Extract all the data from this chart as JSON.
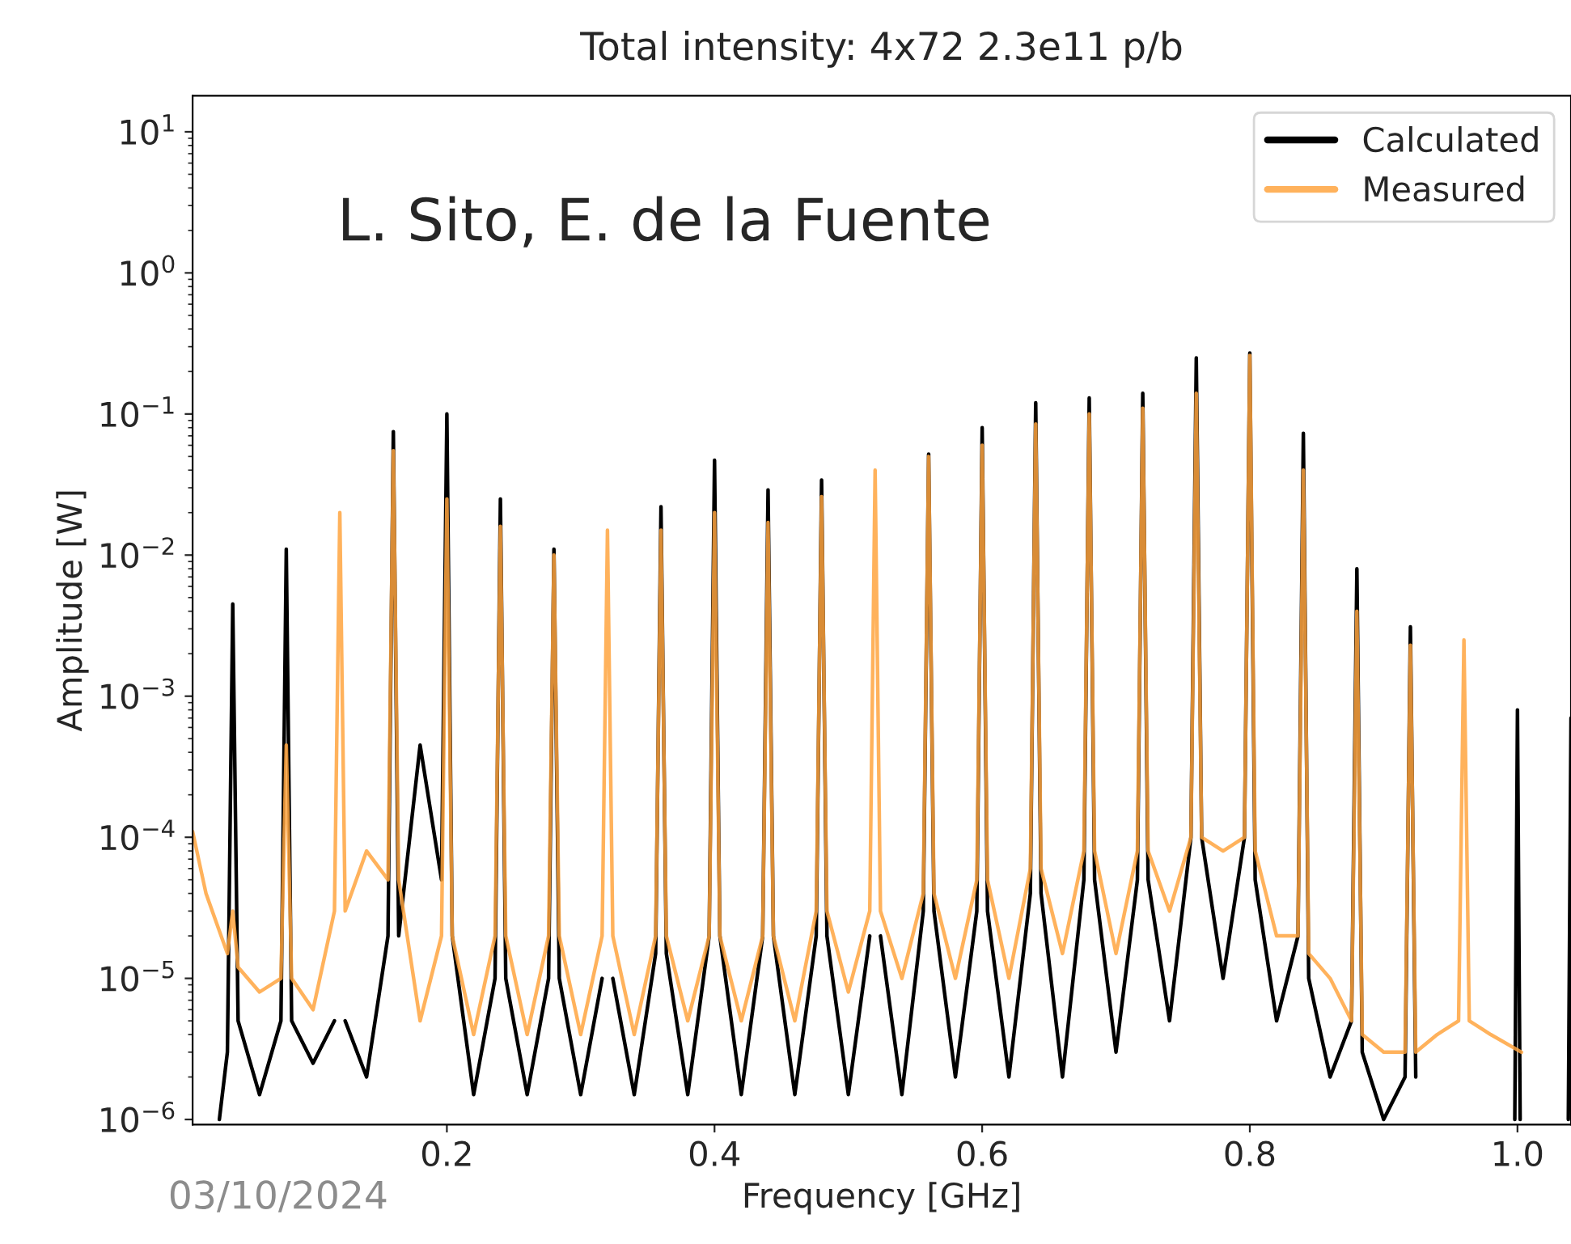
{
  "chart_data": {
    "type": "line",
    "title": "Total intensity: 4x72 2.3e11 p/b",
    "xlabel": "Frequency [GHz]",
    "ylabel": "Amplitude [W]",
    "annotations": [
      "L. Sito, E. de la Fuente",
      "03/10/2024"
    ],
    "log": "y",
    "xlim": [
      0.01,
      1.04
    ],
    "ylim": [
      9.2e-07,
      18
    ],
    "xticks": [
      0.2,
      0.4,
      0.6,
      0.8,
      {
        "value": 1,
        "label": "1.0"
      }
    ],
    "yticks": [
      {
        "value": 1e-06,
        "label": "10$^{−6}$"
      },
      {
        "value": 1e-05,
        "label": "10$^{−5}$"
      },
      {
        "value": 0.0001,
        "label": "10$^{−4}$"
      },
      {
        "value": 0.001,
        "label": "10$^{−3}$"
      },
      {
        "value": 0.01,
        "label": "10$^{−2}$"
      },
      {
        "value": 0.1,
        "label": "10$^{−1}$"
      },
      {
        "value": 1,
        "label": "10$^{0}$"
      },
      {
        "value": 10,
        "label": "10$^{1}$"
      }
    ],
    "legend": "top right",
    "grid": false,
    "series": [
      {
        "name": "Calculated",
        "color": "#000000",
        "x": [
          0.03,
          0.036,
          0.04,
          0.044,
          0.06,
          0.076,
          0.08,
          0.084,
          0.1,
          0.116,
          0.12,
          0.124,
          0.14,
          0.156,
          0.16,
          0.164,
          0.18,
          0.196,
          0.2,
          0.204,
          0.22,
          0.236,
          0.24,
          0.244,
          0.26,
          0.276,
          0.28,
          0.284,
          0.3,
          0.316,
          0.32,
          0.324,
          0.34,
          0.356,
          0.36,
          0.364,
          0.38,
          0.396,
          0.4,
          0.404,
          0.42,
          0.436,
          0.44,
          0.444,
          0.46,
          0.476,
          0.48,
          0.484,
          0.5,
          0.516,
          0.52,
          0.524,
          0.54,
          0.556,
          0.56,
          0.564,
          0.58,
          0.596,
          0.6,
          0.604,
          0.62,
          0.636,
          0.64,
          0.644,
          0.66,
          0.676,
          0.68,
          0.684,
          0.7,
          0.716,
          0.72,
          0.724,
          0.74,
          0.756,
          0.76,
          0.764,
          0.78,
          0.796,
          0.8,
          0.804,
          0.82,
          0.836,
          0.84,
          0.844,
          0.86,
          0.876,
          0.88,
          0.884,
          0.9,
          0.916,
          0.92,
          0.924,
          0.94,
          0.956,
          0.96,
          0.964,
          0.98,
          0.998,
          1.0,
          1.002,
          1.02,
          1.038,
          1.04
        ],
        "values": [
          1e-06,
          3e-06,
          0.0045,
          5e-06,
          1.5e-06,
          5e-06,
          0.011,
          5e-06,
          2.5e-06,
          5e-06,
          null,
          5e-06,
          2e-06,
          2e-05,
          0.075,
          2e-05,
          0.00045,
          5e-05,
          0.1,
          2e-05,
          1.5e-06,
          1e-05,
          0.025,
          1e-05,
          1.5e-06,
          1e-05,
          0.011,
          1e-05,
          1.5e-06,
          1e-05,
          null,
          1e-05,
          1.5e-06,
          1.5e-05,
          0.022,
          1.5e-05,
          1.5e-06,
          2e-05,
          0.047,
          2e-05,
          1.5e-06,
          2e-05,
          0.029,
          2e-05,
          1.5e-06,
          2e-05,
          0.034,
          2e-05,
          1.5e-06,
          2e-05,
          null,
          2e-05,
          1.5e-06,
          3e-05,
          0.052,
          3e-05,
          2e-06,
          3e-05,
          0.08,
          3e-05,
          2e-06,
          4e-05,
          0.12,
          4e-05,
          2e-06,
          5e-05,
          0.13,
          5e-05,
          3e-06,
          5e-05,
          0.14,
          5e-05,
          5e-06,
          0.0001,
          0.25,
          0.0001,
          1e-05,
          0.0001,
          0.27,
          5e-05,
          5e-06,
          2e-05,
          0.073,
          1e-05,
          2e-06,
          5e-06,
          0.008,
          3e-06,
          1e-06,
          2e-06,
          0.0031,
          2e-06,
          null,
          null,
          null,
          null,
          null,
          1e-06,
          0.0008,
          1e-06,
          null,
          1e-06,
          0.0007
        ]
      },
      {
        "name": "Measured",
        "color": "#ffa53f",
        "x": [
          0.01,
          0.02,
          0.036,
          0.04,
          0.044,
          0.06,
          0.076,
          0.08,
          0.084,
          0.1,
          0.116,
          0.12,
          0.124,
          0.14,
          0.156,
          0.16,
          0.164,
          0.18,
          0.196,
          0.2,
          0.204,
          0.22,
          0.236,
          0.24,
          0.244,
          0.26,
          0.276,
          0.28,
          0.284,
          0.3,
          0.316,
          0.32,
          0.324,
          0.34,
          0.356,
          0.36,
          0.364,
          0.38,
          0.396,
          0.4,
          0.404,
          0.42,
          0.436,
          0.44,
          0.444,
          0.46,
          0.476,
          0.48,
          0.484,
          0.5,
          0.516,
          0.52,
          0.524,
          0.54,
          0.556,
          0.56,
          0.564,
          0.58,
          0.596,
          0.6,
          0.604,
          0.62,
          0.636,
          0.64,
          0.644,
          0.66,
          0.676,
          0.68,
          0.684,
          0.7,
          0.716,
          0.72,
          0.724,
          0.74,
          0.756,
          0.76,
          0.764,
          0.78,
          0.796,
          0.8,
          0.804,
          0.82,
          0.836,
          0.84,
          0.844,
          0.86,
          0.876,
          0.88,
          0.884,
          0.9,
          0.916,
          0.92,
          0.924,
          0.94,
          0.956,
          0.96,
          0.964,
          0.98,
          1.003
        ],
        "values": [
          0.00011,
          4e-05,
          1.5e-05,
          3e-05,
          1.2e-05,
          8e-06,
          1e-05,
          0.00045,
          1e-05,
          6e-06,
          3e-05,
          0.02,
          3e-05,
          8e-05,
          5e-05,
          0.055,
          5e-05,
          5e-06,
          2e-05,
          0.025,
          2e-05,
          4e-06,
          2e-05,
          0.016,
          2e-05,
          4e-06,
          2e-05,
          0.01,
          2e-05,
          4e-06,
          2e-05,
          0.015,
          2e-05,
          4e-06,
          2e-05,
          0.015,
          2e-05,
          5e-06,
          2e-05,
          0.02,
          2e-05,
          5e-06,
          2e-05,
          0.017,
          2e-05,
          5e-06,
          3e-05,
          0.026,
          3e-05,
          8e-06,
          3e-05,
          0.04,
          3e-05,
          1e-05,
          4e-05,
          0.05,
          4e-05,
          1e-05,
          5e-05,
          0.06,
          5e-05,
          1e-05,
          6e-05,
          0.085,
          6e-05,
          1.5e-05,
          8e-05,
          0.1,
          8e-05,
          1.5e-05,
          8e-05,
          0.11,
          8e-05,
          3e-05,
          0.0001,
          0.14,
          0.0001,
          8e-05,
          0.0001,
          0.26,
          8e-05,
          2e-05,
          2e-05,
          0.04,
          1.5e-05,
          1e-05,
          5e-06,
          0.004,
          4e-06,
          3e-06,
          3e-06,
          0.0023,
          3e-06,
          4e-06,
          5e-06,
          0.0025,
          5e-06,
          4e-06,
          3e-06
        ]
      }
    ]
  }
}
